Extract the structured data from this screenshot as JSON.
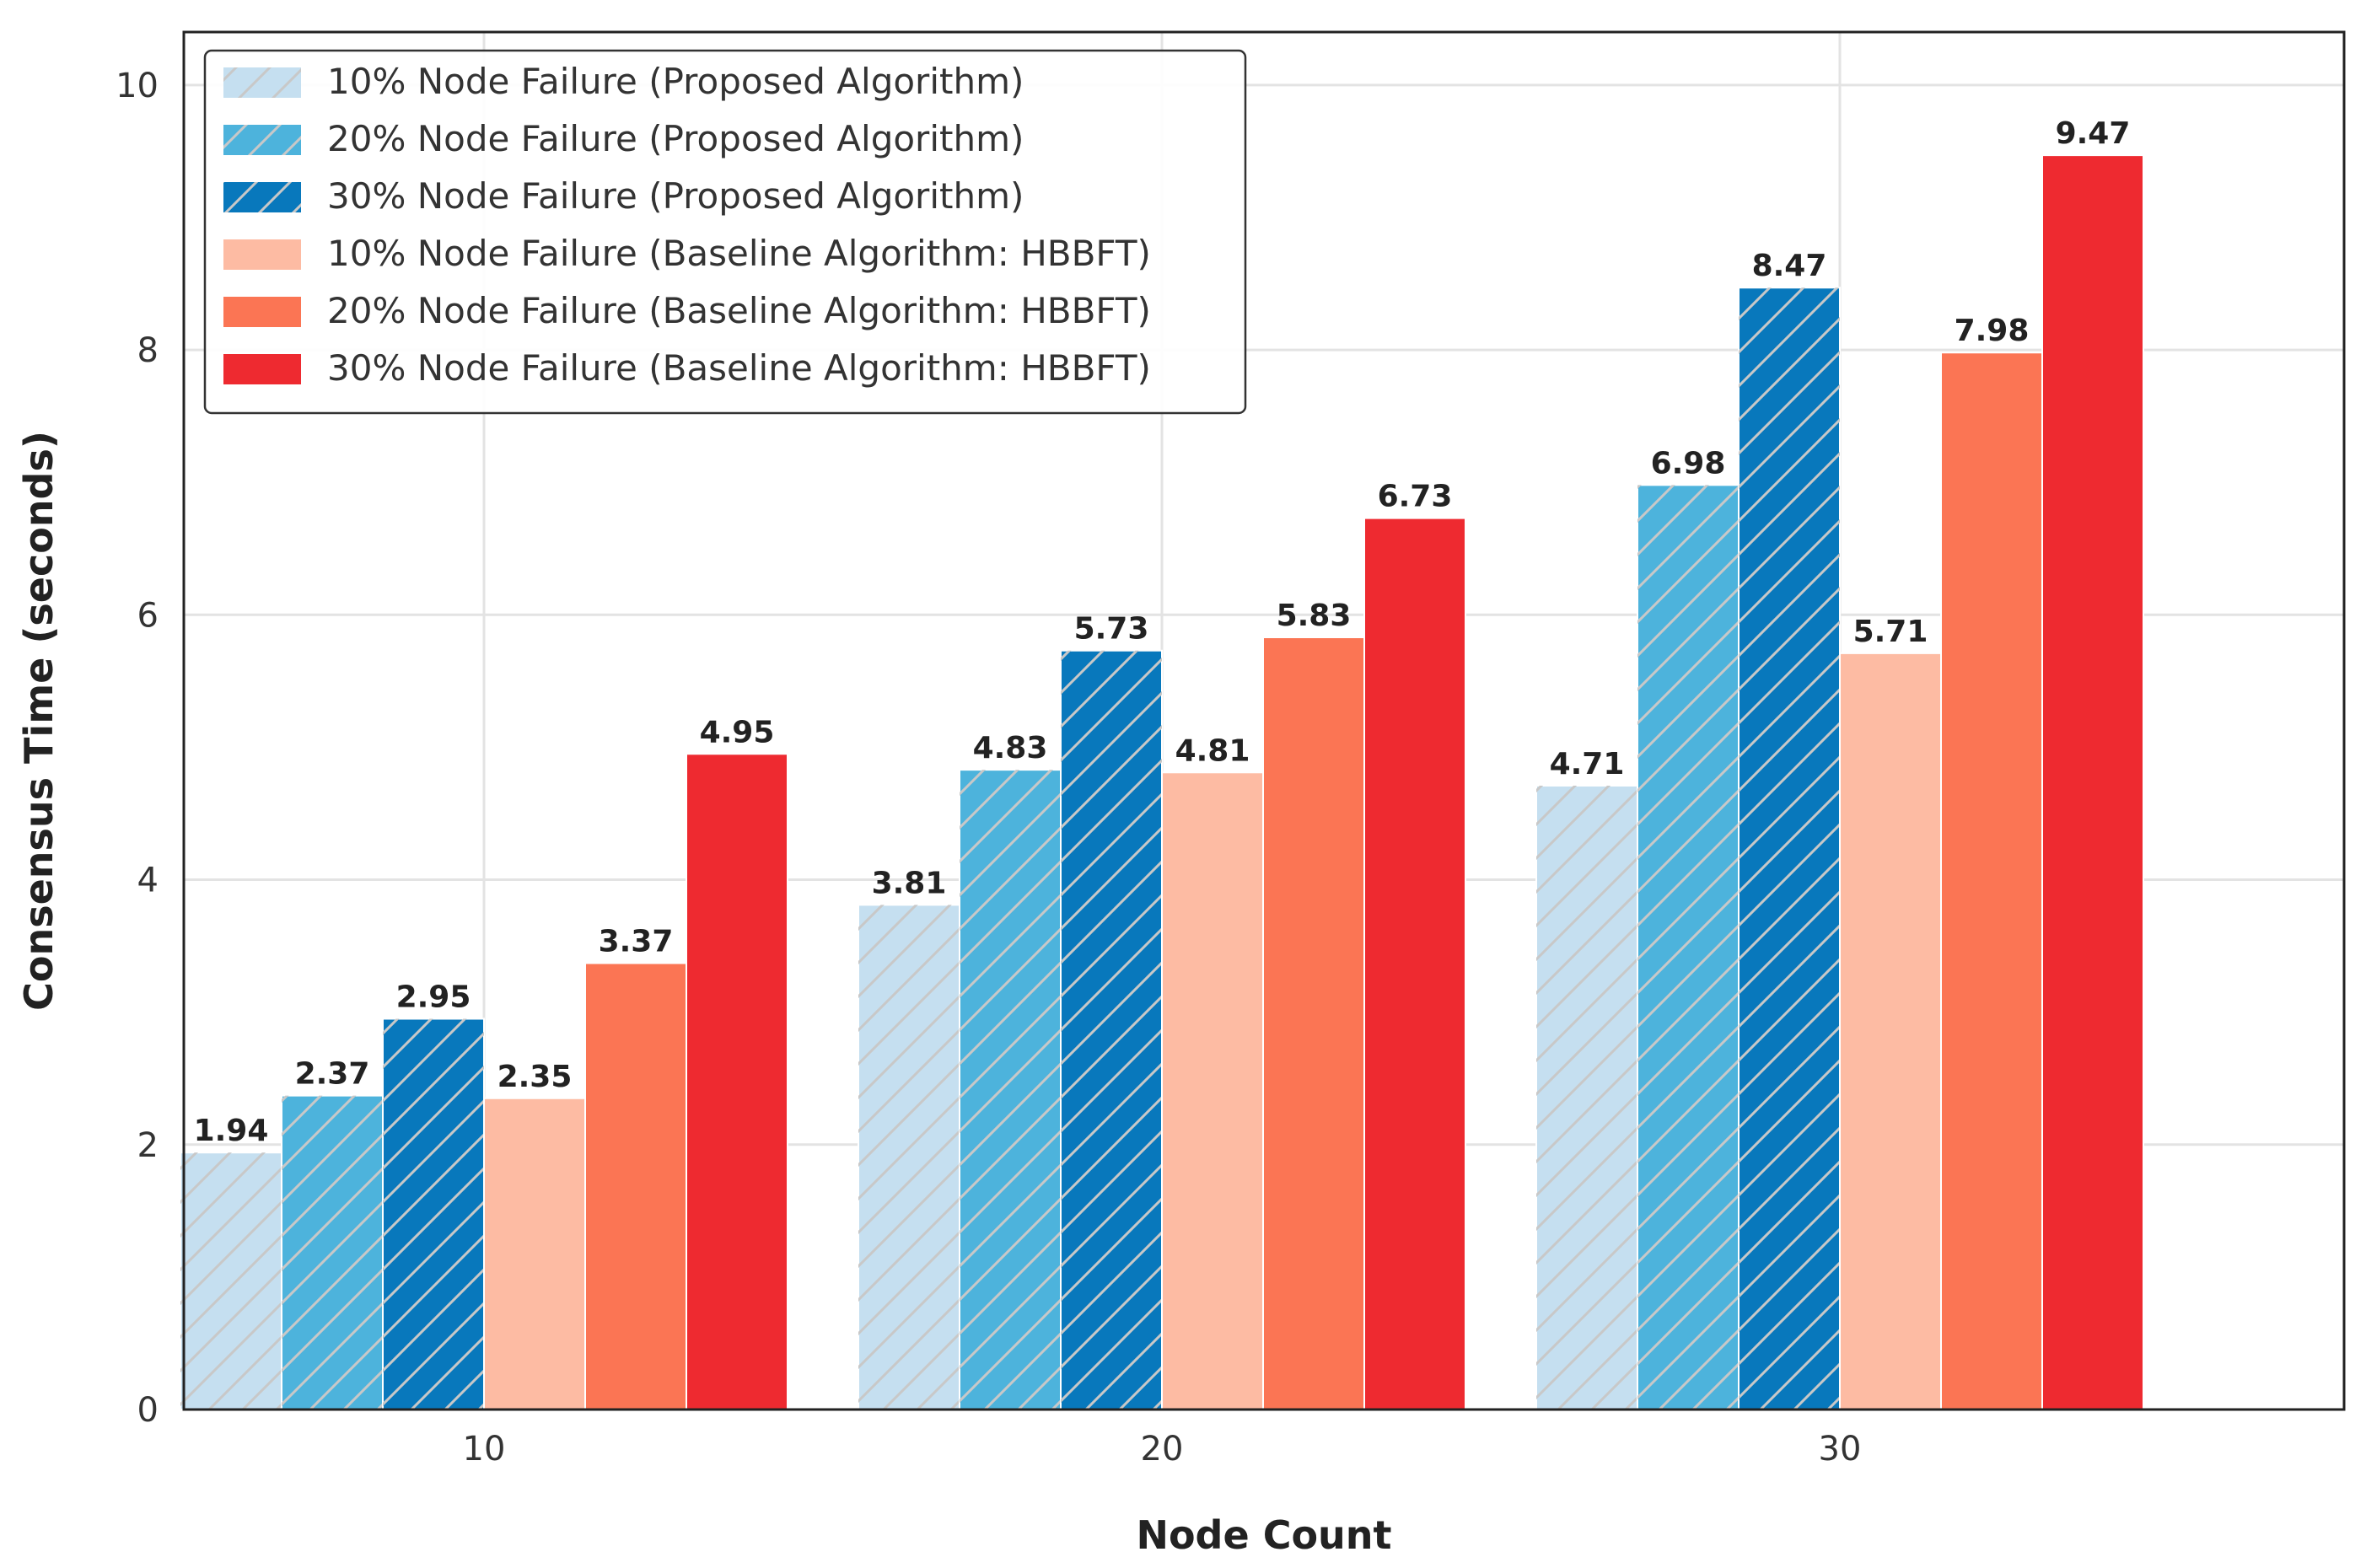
{
  "chart_data": {
    "type": "bar",
    "title": "",
    "xlabel": "Node Count",
    "ylabel": "Consensus Time (seconds)",
    "categories": [
      "10",
      "20",
      "30"
    ],
    "ylim": [
      0,
      10.4
    ],
    "yticks": [
      0,
      2,
      4,
      6,
      8,
      10
    ],
    "grid": true,
    "legend_position": "top-left",
    "series": [
      {
        "name": "10% Node Failure (Proposed Algorithm)",
        "values": [
          1.94,
          3.81,
          4.71
        ],
        "labels": [
          "1.94",
          "3.81",
          "4.71"
        ],
        "color": "#c5dff0",
        "hatch": true
      },
      {
        "name": "20% Node Failure (Proposed Algorithm)",
        "values": [
          2.37,
          4.83,
          6.98
        ],
        "labels": [
          "2.37",
          "4.83",
          "6.98"
        ],
        "color": "#4db3dc",
        "hatch": true
      },
      {
        "name": "30% Node Failure (Proposed Algorithm)",
        "values": [
          2.95,
          5.73,
          8.47
        ],
        "labels": [
          "2.95",
          "5.73",
          "8.47"
        ],
        "color": "#0878bc",
        "hatch": true
      },
      {
        "name": "10% Node Failure (Baseline Algorithm: HBBFT)",
        "values": [
          2.35,
          4.81,
          5.71
        ],
        "labels": [
          "2.35",
          "4.81",
          "5.71"
        ],
        "color": "#fdbba3",
        "hatch": false
      },
      {
        "name": "20% Node Failure (Baseline Algorithm: HBBFT)",
        "values": [
          3.37,
          5.83,
          7.98
        ],
        "labels": [
          "3.37",
          "5.83",
          "7.98"
        ],
        "color": "#fb7554",
        "hatch": false
      },
      {
        "name": "30% Node Failure (Baseline Algorithm: HBBFT)",
        "values": [
          4.95,
          6.73,
          9.47
        ],
        "labels": [
          "4.95",
          "6.73",
          "9.47"
        ],
        "color": "#ee2a30",
        "hatch": false
      }
    ]
  }
}
